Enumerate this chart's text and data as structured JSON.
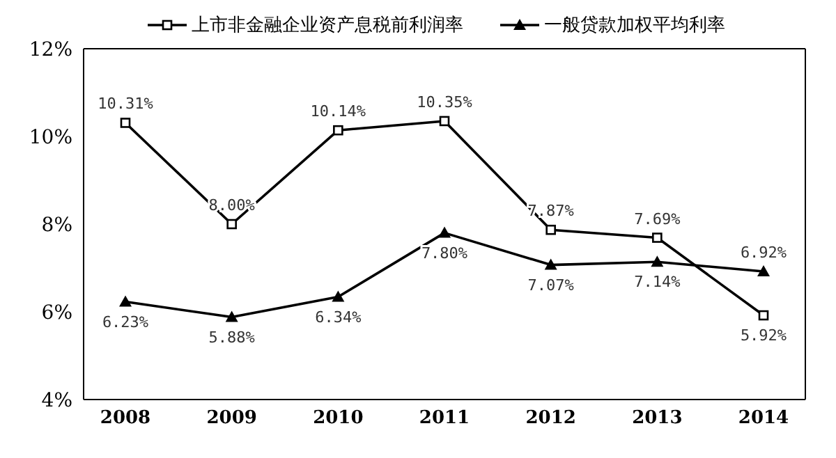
{
  "chart_data": {
    "type": "line",
    "categories": [
      "2008",
      "2009",
      "2010",
      "2011",
      "2012",
      "2013",
      "2014"
    ],
    "series": [
      {
        "name": "上市非金融企业资产息税前利润率",
        "color": "#000000",
        "marker": "square",
        "values": [
          10.31,
          8.0,
          10.14,
          10.35,
          7.87,
          7.69,
          5.92
        ],
        "value_labels": [
          "10.31%",
          "8.00%",
          "10.14%",
          "10.35%",
          "7.87%",
          "7.69%",
          "5.92%"
        ]
      },
      {
        "name": "一般贷款加权平均利率",
        "color": "#000000",
        "marker": "triangle",
        "values": [
          6.23,
          5.88,
          6.34,
          7.8,
          7.07,
          7.14,
          6.92
        ],
        "value_labels": [
          "6.23%",
          "5.88%",
          "6.34%",
          "7.80%",
          "7.07%",
          "7.14%",
          "6.92%"
        ]
      }
    ],
    "ylim": [
      4,
      12
    ],
    "yticks": [
      {
        "value": 4,
        "label": "4%"
      },
      {
        "value": 6,
        "label": "6%"
      },
      {
        "value": 8,
        "label": "8%"
      },
      {
        "value": 10,
        "label": "10%"
      },
      {
        "value": 12,
        "label": "12%"
      }
    ],
    "grid": false,
    "legend": "top"
  }
}
